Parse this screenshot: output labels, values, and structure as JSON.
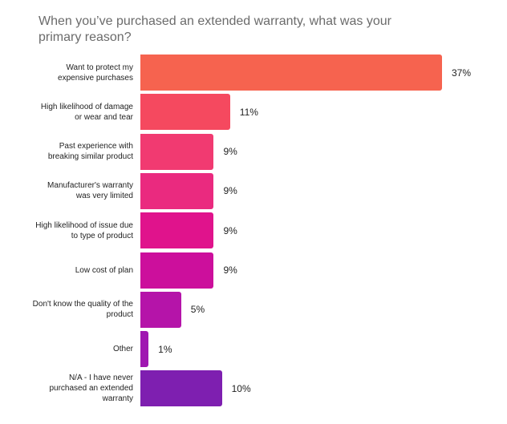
{
  "chart_data": {
    "type": "barh",
    "title": "When you’ve purchased an extended warranty, what was your primary reason?",
    "categories": [
      "Want to protect my expensive purchases",
      "High likelihood of damage or wear and tear",
      "Past experience with breaking similar product",
      "Manufacturer's warranty was very limited",
      "High likelihood of issue due to type of product",
      "Low cost of plan",
      "Don't know the quality of the product",
      "Other",
      "N/A - I have never purchased an extended warranty"
    ],
    "values": [
      37,
      11,
      9,
      9,
      9,
      9,
      5,
      1,
      10
    ],
    "value_labels": [
      "37%",
      "11%",
      "9%",
      "9%",
      "9%",
      "9%",
      "5%",
      "1%",
      "10%"
    ],
    "colors": [
      "#f6634f",
      "#f5495f",
      "#f13a71",
      "#ea2a7f",
      "#e0138c",
      "#cc0f9c",
      "#b514a9",
      "#a017b1",
      "#7e1fb0"
    ]
  }
}
